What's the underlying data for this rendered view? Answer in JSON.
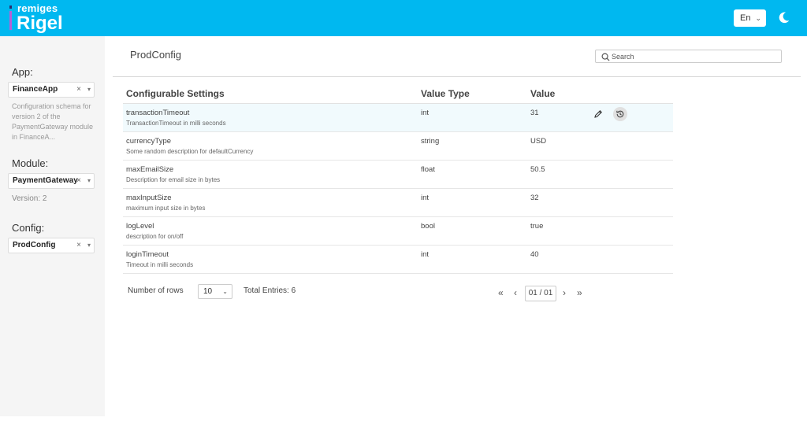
{
  "header": {
    "brand_sub": "remiges",
    "brand_main": "Rigel",
    "language": "En",
    "accent": "#00b8f0"
  },
  "sidebar": {
    "app_label": "App:",
    "app_value": "FinanceApp",
    "app_description": "Configuration schema for version 2 of the PaymentGateway module in FinanceA...",
    "module_label": "Module:",
    "module_value": "PaymentGateway",
    "version_text": "Version: 2",
    "config_label": "Config:",
    "config_value": "ProdConfig",
    "clear_glyph": "×"
  },
  "main": {
    "title": "ProdConfig",
    "search_placeholder": "Search",
    "columns": [
      "Configurable Settings",
      "Value Type",
      "Value"
    ],
    "rows": [
      {
        "name": "transactionTimeout",
        "description": "TransactionTimeout in milli seconds",
        "type": "int",
        "value": "31"
      },
      {
        "name": "currencyType",
        "description": "Some random description for defaultCurrency",
        "type": "string",
        "value": "USD"
      },
      {
        "name": "maxEmailSize",
        "description": "Description for email size in bytes",
        "type": "float",
        "value": "50.5"
      },
      {
        "name": "maxInputSize",
        "description": "maximum input size in bytes",
        "type": "int",
        "value": "32"
      },
      {
        "name": "logLevel",
        "description": "description for on/off",
        "type": "bool",
        "value": "true"
      },
      {
        "name": "loginTimeout",
        "description": "Timeout in milli seconds",
        "type": "int",
        "value": "40"
      }
    ]
  },
  "footer": {
    "rows_label": "Number of rows",
    "rows_value": "10",
    "total_entries": "Total Entries: 6",
    "page_indicator": "01 / 01",
    "first": "«",
    "prev": "‹",
    "next": "›",
    "last": "»"
  }
}
